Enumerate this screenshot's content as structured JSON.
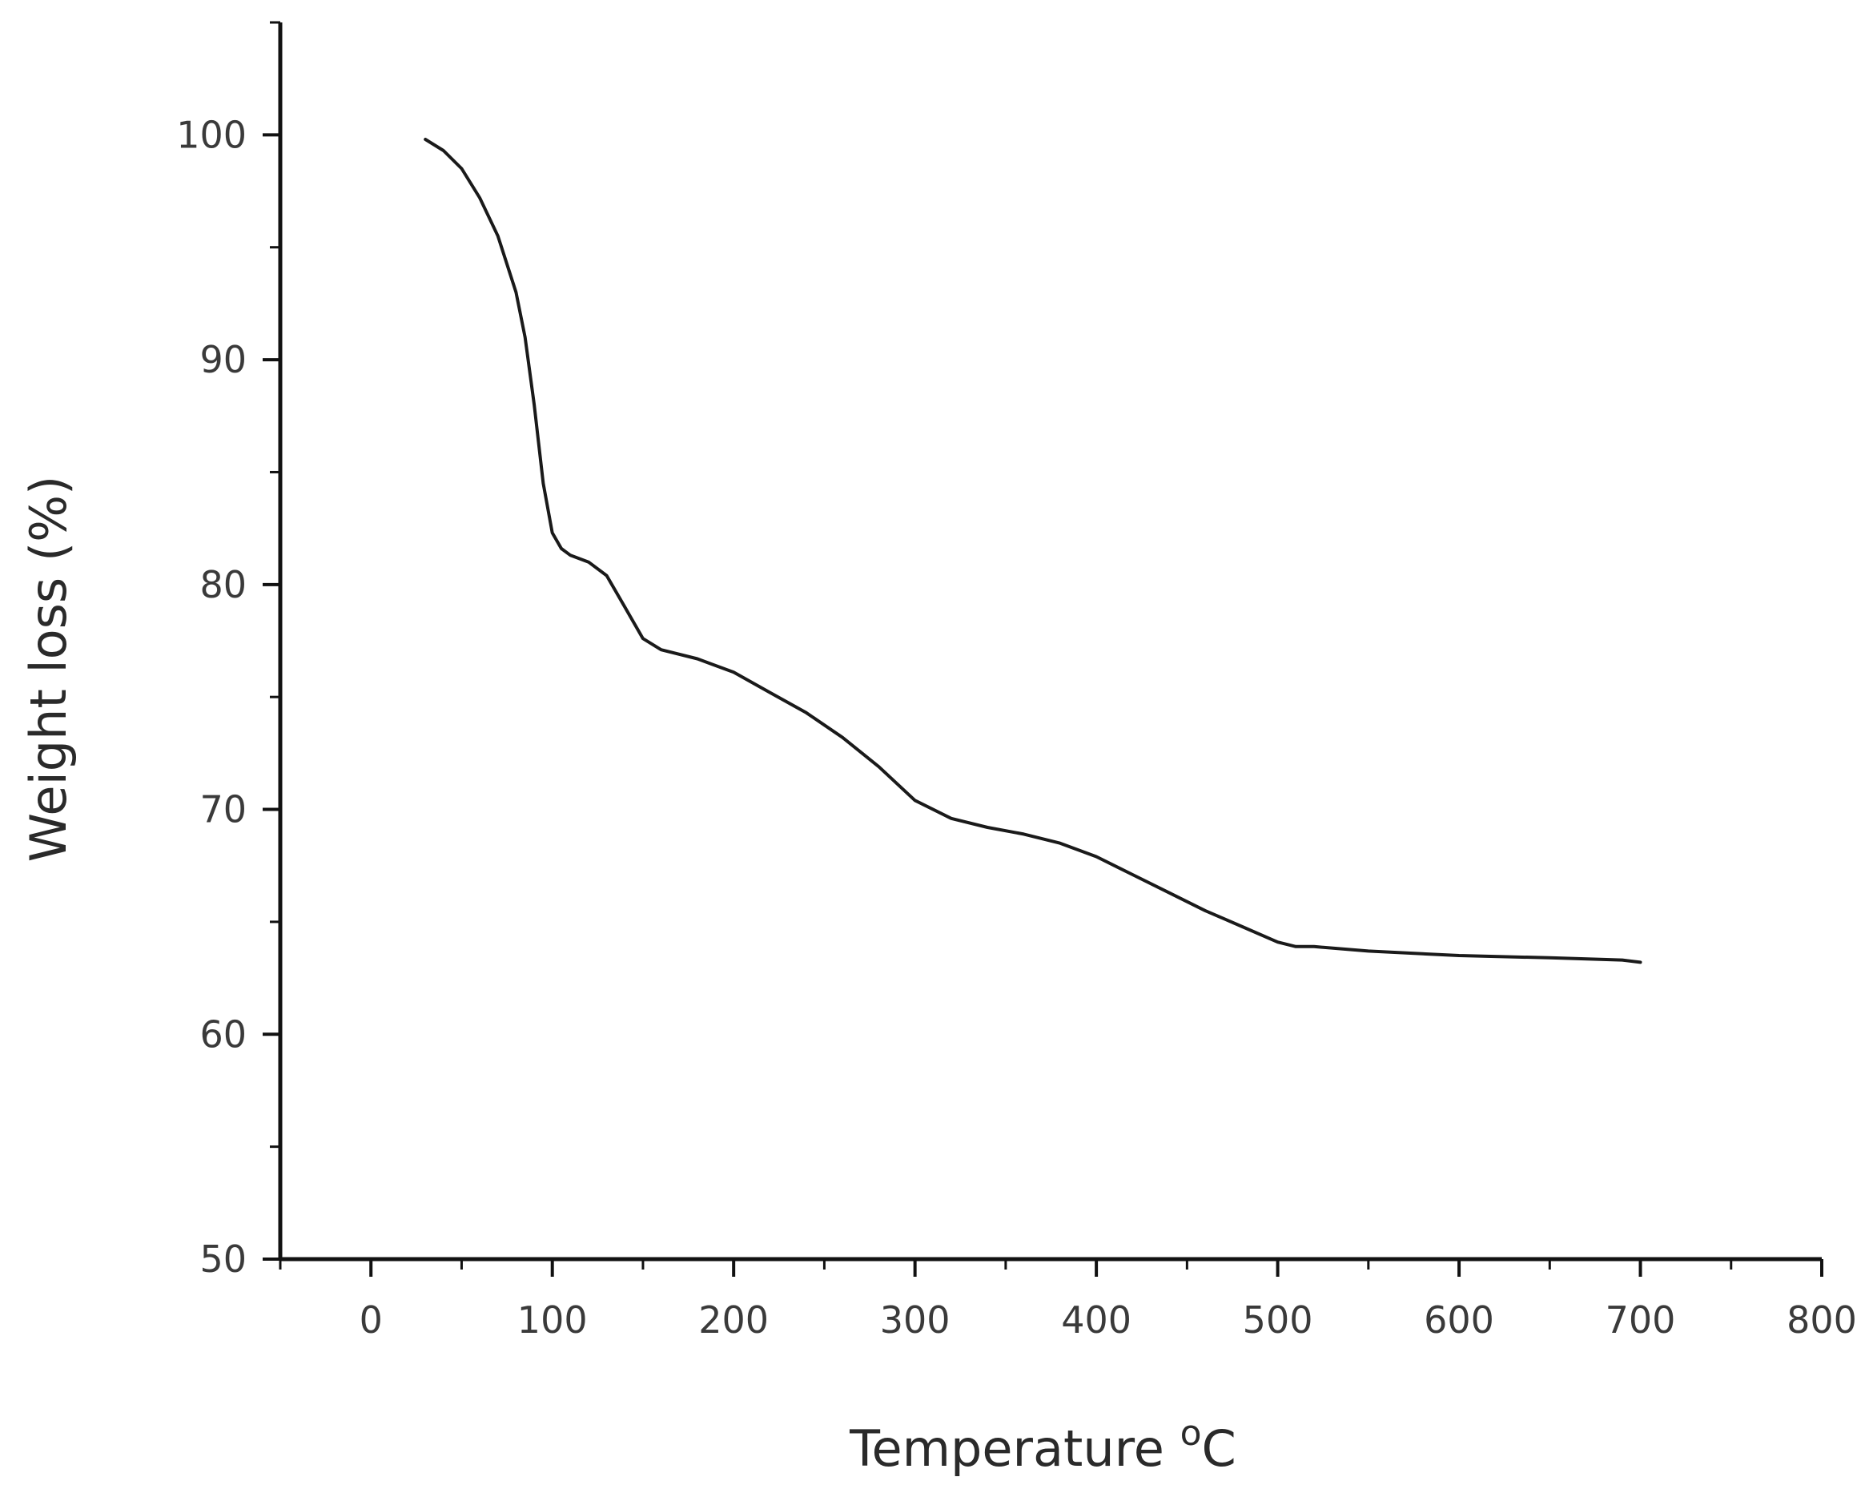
{
  "chart_data": {
    "type": "line",
    "title": "",
    "xlabel": "Temperature",
    "xlabel_unit": "C",
    "xlabel_unit_superscript": "o",
    "ylabel": "Weight loss (%)",
    "xlim": [
      -50,
      800
    ],
    "ylim": [
      50,
      105
    ],
    "x_ticks": [
      0,
      100,
      200,
      300,
      400,
      500,
      600,
      700,
      800
    ],
    "y_ticks": [
      50,
      60,
      70,
      80,
      90,
      100
    ],
    "grid": false,
    "line_color": "#1a1a1a",
    "series": [
      {
        "x": [
          30,
          40,
          50,
          60,
          70,
          80,
          85,
          90,
          95,
          100,
          105,
          110,
          120,
          130,
          140,
          150,
          160,
          180,
          200,
          220,
          240,
          260,
          280,
          300,
          320,
          340,
          360,
          380,
          400,
          420,
          440,
          460,
          480,
          500,
          510,
          520,
          550,
          600,
          650,
          690,
          700
        ],
        "y": [
          99.8,
          99.3,
          98.5,
          97.2,
          95.5,
          93.0,
          91.0,
          88.0,
          84.5,
          82.3,
          81.6,
          81.3,
          81.0,
          80.4,
          79.0,
          77.6,
          77.1,
          76.7,
          76.1,
          75.2,
          74.3,
          73.2,
          71.9,
          70.4,
          69.6,
          69.2,
          68.9,
          68.5,
          67.9,
          67.1,
          66.3,
          65.5,
          64.8,
          64.1,
          63.9,
          63.9,
          63.7,
          63.5,
          63.4,
          63.3,
          63.2
        ]
      }
    ]
  }
}
